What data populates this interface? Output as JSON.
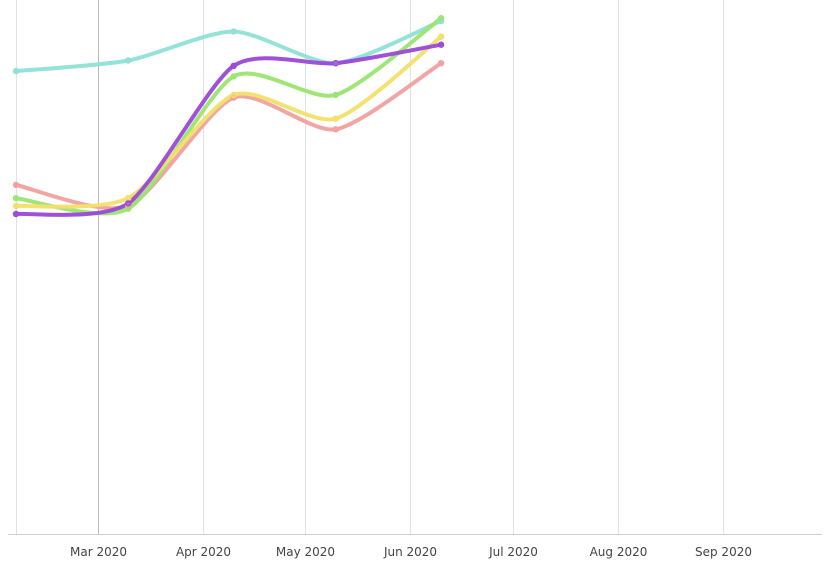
{
  "chart_data": {
    "type": "line",
    "title": "",
    "xlabel": "",
    "ylabel": "",
    "x_tick_labels": [
      "Mar 2020",
      "Apr 2020",
      "May 2020",
      "Jun 2020",
      "Jul 2020",
      "Aug 2020",
      "Sep 2020"
    ],
    "x_range": [
      "2020-02-06",
      "2020-09-30"
    ],
    "y_range": [
      0,
      100
    ],
    "grid": {
      "vertical": true,
      "horizontal": false
    },
    "legend": "none",
    "point_dates": [
      "2020-02-06",
      "2020-03-10",
      "2020-04-10",
      "2020-05-10",
      "2020-06-10"
    ],
    "series": [
      {
        "color": "#8ee0d6",
        "values": [
          87.5,
          89.5,
          95.0,
          89.0,
          97.0
        ]
      },
      {
        "color": "#f0a19e",
        "values": [
          66.0,
          62.0,
          82.5,
          76.5,
          89.0
        ]
      },
      {
        "color": "#9ae56f",
        "values": [
          63.5,
          61.5,
          86.5,
          83.0,
          97.5
        ]
      },
      {
        "color": "#f2e06a",
        "values": [
          62.0,
          63.5,
          83.0,
          78.5,
          94.0
        ]
      },
      {
        "color": "#9a48d6",
        "values": [
          60.5,
          62.5,
          88.5,
          89.0,
          92.5
        ]
      }
    ]
  }
}
